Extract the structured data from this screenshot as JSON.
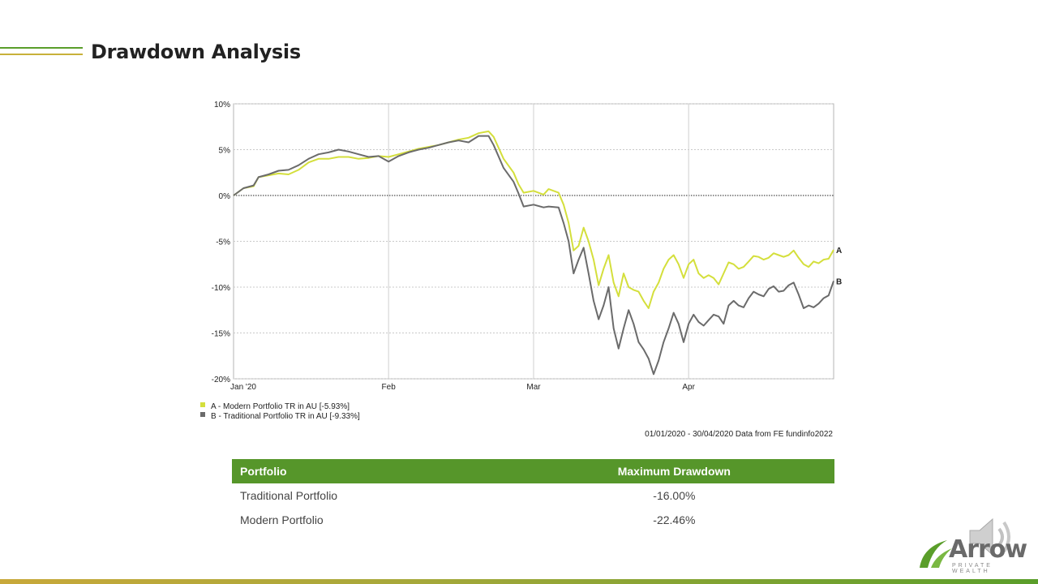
{
  "page": {
    "title": "Drawdown Analysis"
  },
  "colors": {
    "series_a": "#d4df3c",
    "series_b": "#6b6b6b",
    "accent_green": "#56962a",
    "accent_gold": "#c8b13a"
  },
  "chart_data": {
    "type": "line",
    "title": "",
    "x_tick_labels": [
      "Jan '20",
      "Feb",
      "Mar",
      "Apr"
    ],
    "x_tick_days": [
      0,
      31,
      60,
      91
    ],
    "y_ticks": [
      10,
      5,
      0,
      -5,
      -10,
      -15,
      -20
    ],
    "y_tick_labels": [
      "10%",
      "5%",
      "0%",
      "-5%",
      "-10%",
      "-15%",
      "-20%"
    ],
    "ylim": [
      -20,
      10
    ],
    "xlim": [
      0,
      120
    ],
    "grid": true,
    "series": [
      {
        "name": "A - Modern Portfolio TR in AU [-5.93%]",
        "end_label": "A",
        "x": [
          0,
          2,
          4,
          5,
          7,
          9,
          11,
          13,
          15,
          17,
          19,
          21,
          23,
          25,
          27,
          29,
          31,
          33,
          35,
          37,
          39,
          41,
          43,
          45,
          47,
          49,
          51,
          52,
          54,
          56,
          57,
          58,
          60,
          62,
          63,
          65,
          66,
          67,
          68,
          69,
          70,
          71,
          72,
          73,
          74,
          75,
          76,
          77,
          78,
          79,
          80,
          81,
          82,
          83,
          84,
          85,
          86,
          87,
          88,
          89,
          90,
          91,
          92,
          93,
          94,
          95,
          96,
          97,
          98,
          99,
          100,
          101,
          102,
          103,
          104,
          105,
          106,
          107,
          108,
          109,
          110,
          111,
          112,
          113,
          114,
          115,
          116,
          117,
          118,
          119,
          120
        ],
        "y": [
          0,
          0.8,
          1,
          2,
          2.2,
          2.4,
          2.3,
          2.8,
          3.6,
          4,
          4,
          4.2,
          4.2,
          4,
          4.1,
          4.3,
          4.2,
          4.5,
          4.8,
          5.1,
          5.3,
          5.5,
          5.8,
          6.1,
          6.3,
          6.8,
          7,
          6.4,
          4,
          2.5,
          1.2,
          0.3,
          0.5,
          0.1,
          0.7,
          0.3,
          -1,
          -3,
          -6,
          -5.5,
          -3.5,
          -5,
          -7,
          -9.8,
          -8,
          -6.5,
          -9.5,
          -11,
          -8.5,
          -10,
          -10.3,
          -10.5,
          -11.5,
          -12.3,
          -10.5,
          -9.5,
          -8,
          -7,
          -6.5,
          -7.5,
          -9,
          -7.5,
          -7,
          -8.5,
          -9,
          -8.7,
          -9,
          -9.7,
          -8.5,
          -7.3,
          -7.5,
          -8,
          -7.8,
          -7.2,
          -6.6,
          -6.7,
          -7,
          -6.8,
          -6.3,
          -6.5,
          -6.7,
          -6.5,
          -6,
          -6.8,
          -7.5,
          -7.8,
          -7.2,
          -7.4,
          -7,
          -6.9,
          -5.93
        ]
      },
      {
        "name": "B - Traditional Portfolio TR in AU [-9.33%]",
        "end_label": "B",
        "x": [
          0,
          2,
          4,
          5,
          7,
          9,
          11,
          13,
          15,
          17,
          19,
          21,
          23,
          25,
          27,
          29,
          31,
          33,
          35,
          37,
          39,
          41,
          43,
          45,
          47,
          49,
          51,
          52,
          54,
          56,
          57,
          58,
          60,
          62,
          63,
          65,
          66,
          67,
          68,
          69,
          70,
          71,
          72,
          73,
          74,
          75,
          76,
          77,
          78,
          79,
          80,
          81,
          82,
          83,
          84,
          85,
          86,
          87,
          88,
          89,
          90,
          91,
          92,
          93,
          94,
          95,
          96,
          97,
          98,
          99,
          100,
          101,
          102,
          103,
          104,
          105,
          106,
          107,
          108,
          109,
          110,
          111,
          112,
          113,
          114,
          115,
          116,
          117,
          118,
          119,
          120
        ],
        "y": [
          0,
          0.8,
          1.1,
          2,
          2.3,
          2.7,
          2.8,
          3.3,
          4,
          4.5,
          4.7,
          5,
          4.8,
          4.5,
          4.2,
          4.3,
          3.7,
          4.3,
          4.7,
          5,
          5.2,
          5.5,
          5.8,
          6,
          5.8,
          6.5,
          6.5,
          5.5,
          3,
          1.5,
          0.2,
          -1.2,
          -1,
          -1.3,
          -1.2,
          -1.3,
          -3,
          -5,
          -8.5,
          -7,
          -5.7,
          -8.5,
          -11.5,
          -13.5,
          -12,
          -10,
          -14.5,
          -16.7,
          -14.5,
          -12.5,
          -14,
          -16,
          -16.8,
          -17.8,
          -19.5,
          -18,
          -16,
          -14.5,
          -12.8,
          -14,
          -16,
          -14,
          -13,
          -13.8,
          -14.2,
          -13.6,
          -13,
          -13.2,
          -14,
          -12,
          -11.5,
          -12,
          -12.2,
          -11.2,
          -10.5,
          -10.8,
          -11,
          -10.2,
          -9.9,
          -10.5,
          -10.4,
          -9.8,
          -9.5,
          -10.8,
          -12.3,
          -12,
          -12.2,
          -11.8,
          -11.2,
          -10.9,
          -9.33
        ]
      }
    ],
    "source_note": "01/01/2020 - 30/04/2020 Data from FE fundinfo2022"
  },
  "table": {
    "headers": [
      "Portfolio",
      "Maximum Drawdown"
    ],
    "rows": [
      [
        "Traditional Portfolio",
        "-16.00%"
      ],
      [
        "Modern Portfolio",
        "-22.46%"
      ]
    ]
  },
  "logo": {
    "word": "Arrow",
    "subtitle": "PRIVATE WEALTH"
  }
}
